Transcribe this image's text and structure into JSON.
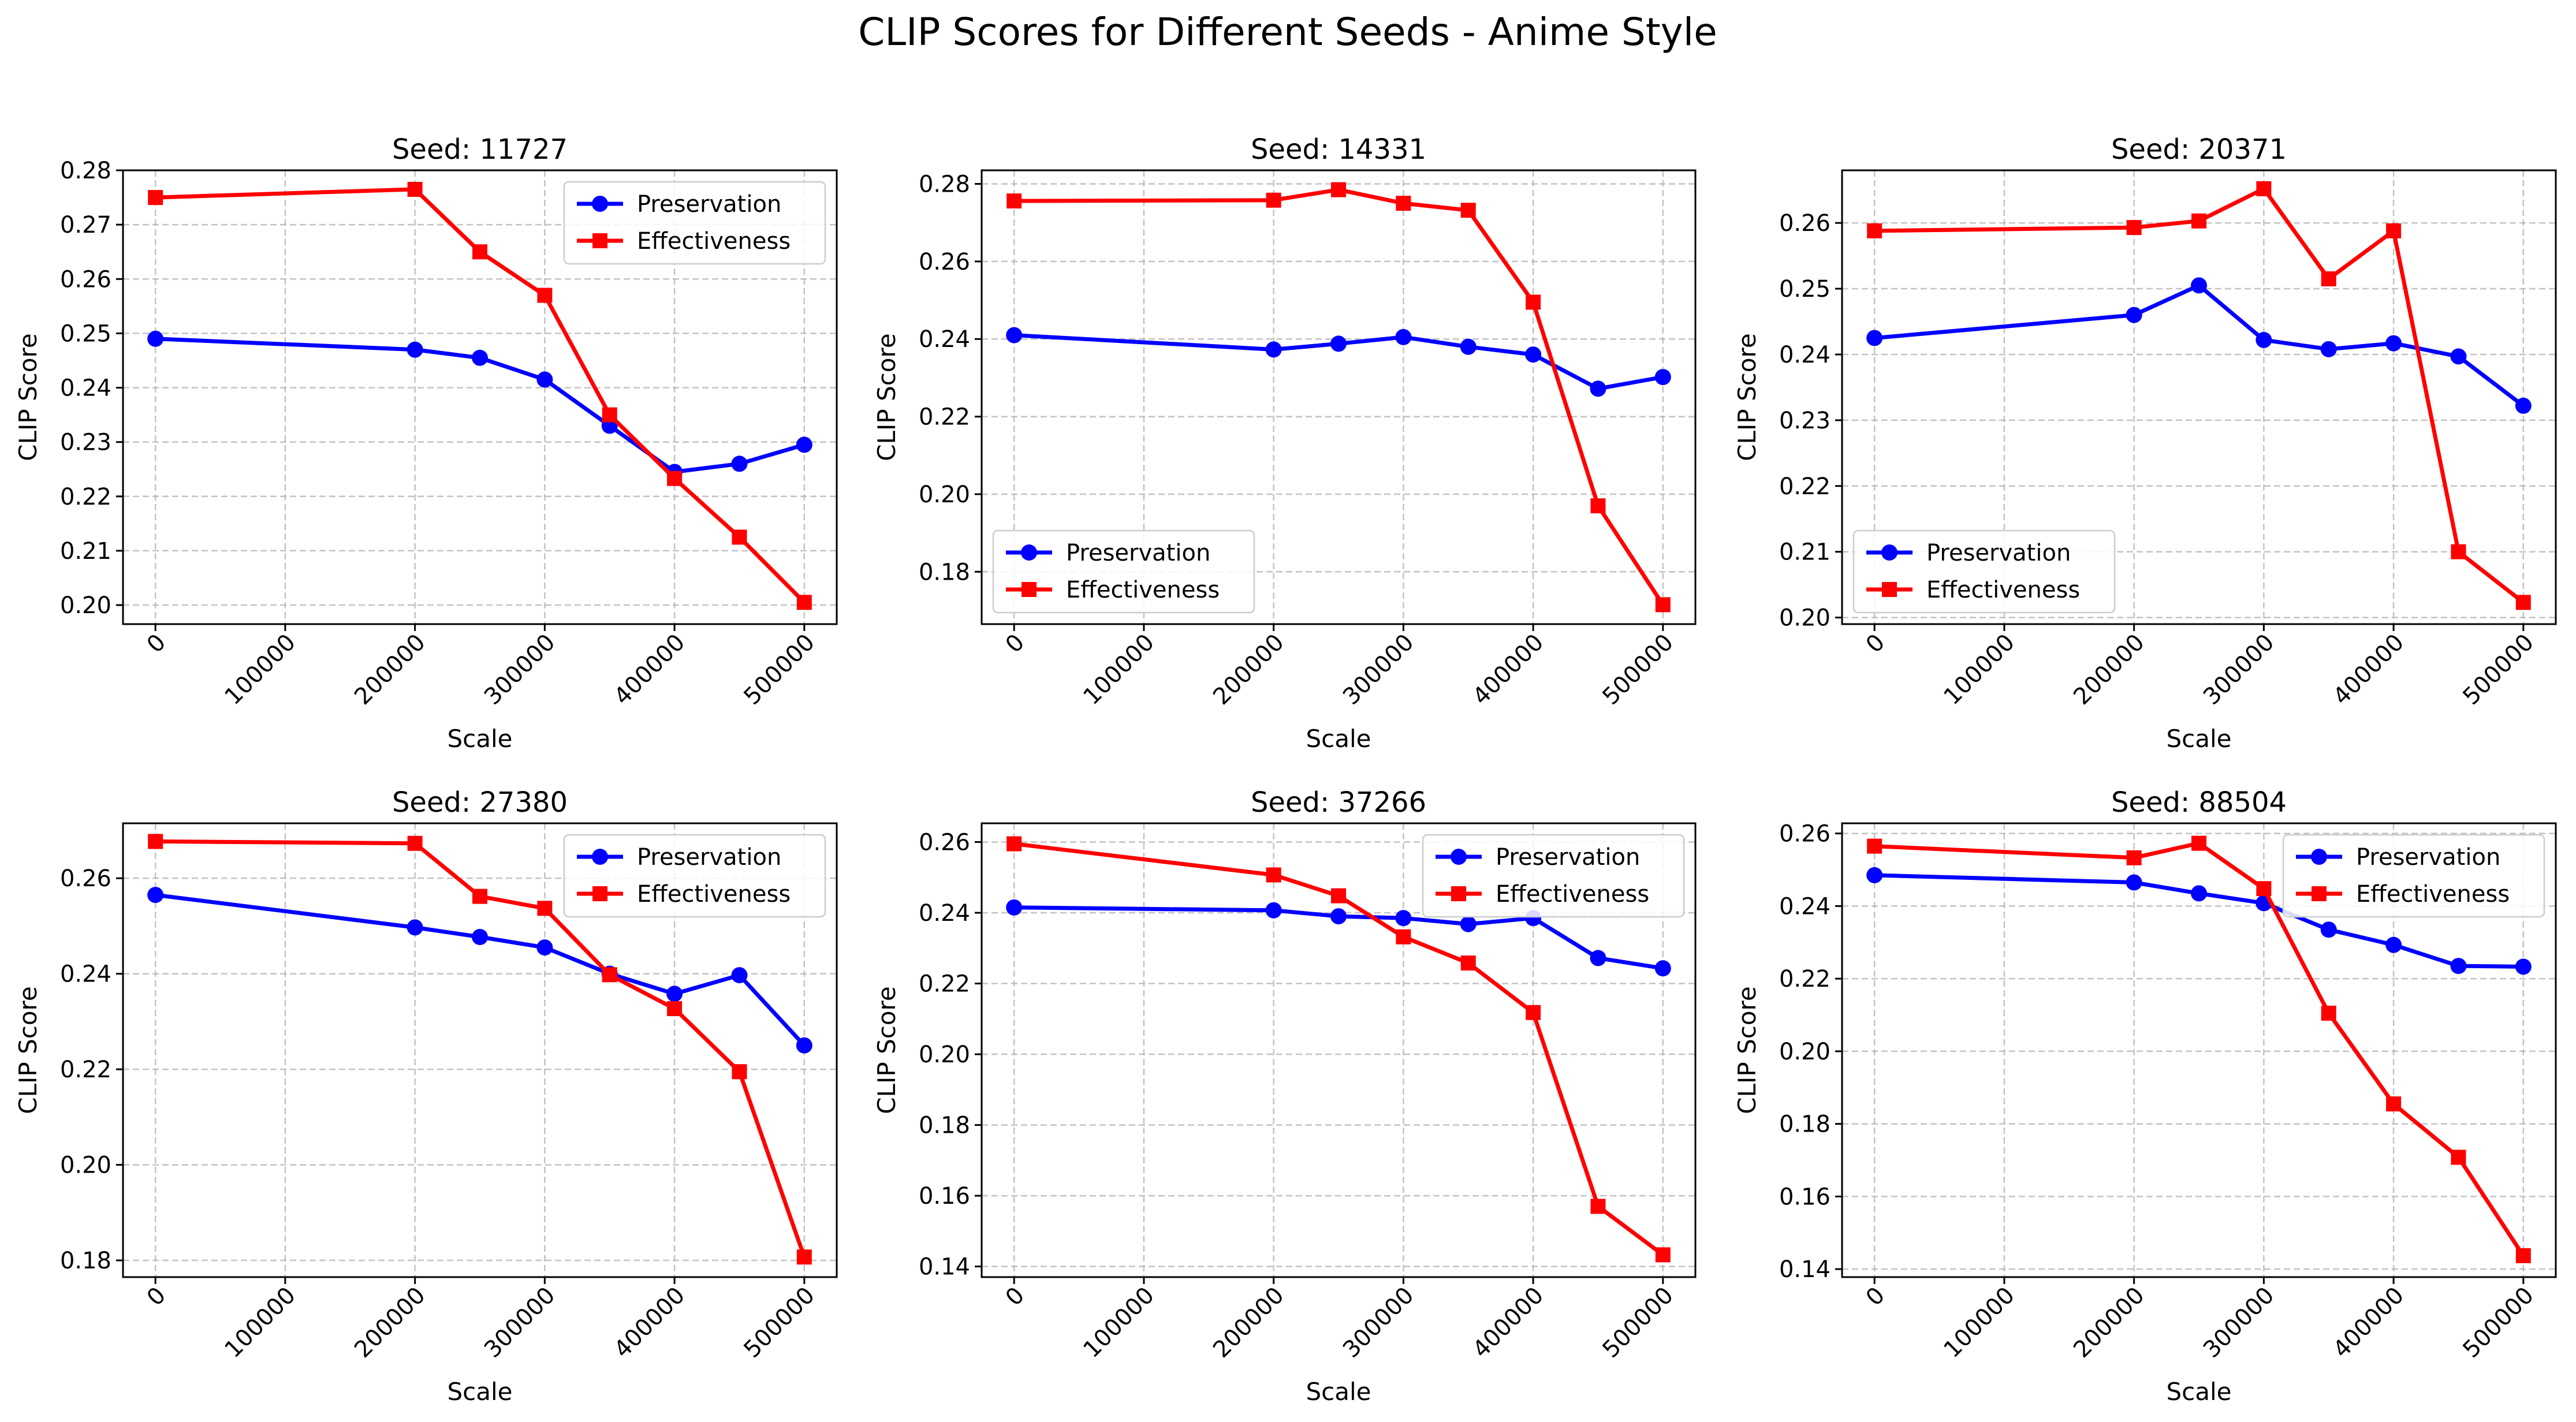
{
  "figure_title": "CLIP Scores for Different Seeds - Anime Style",
  "chart_data": [
    {
      "type": "line",
      "title": "Seed: 11727",
      "xlabel": "Scale",
      "ylabel": "CLIP Score",
      "x": [
        0,
        200000,
        250000,
        300000,
        350000,
        400000,
        450000,
        500000
      ],
      "x_ticks": [
        0,
        100000,
        200000,
        300000,
        400000,
        500000
      ],
      "xlim": [
        -25000,
        525000
      ],
      "ylim": [
        0.1965,
        0.28
      ],
      "y_ticks": [
        0.2,
        0.21,
        0.22,
        0.23,
        0.24,
        0.25,
        0.26,
        0.27,
        0.28
      ],
      "y_tick_decimals": 2,
      "legend": "upper right",
      "grid": true,
      "series": [
        {
          "name": "Preservation",
          "color": "#0000ff",
          "marker": "circle",
          "values": [
            0.249,
            0.247,
            0.2455,
            0.2415,
            0.233,
            0.2245,
            0.226,
            0.2295
          ]
        },
        {
          "name": "Effectiveness",
          "color": "#ff0000",
          "marker": "square",
          "values": [
            0.275,
            0.2765,
            0.265,
            0.257,
            0.235,
            0.2233,
            0.2125,
            0.2005
          ]
        }
      ]
    },
    {
      "type": "line",
      "title": "Seed: 14331",
      "xlabel": "Scale",
      "ylabel": "CLIP Score",
      "x": [
        0,
        200000,
        250000,
        300000,
        350000,
        400000,
        450000,
        500000
      ],
      "x_ticks": [
        0,
        100000,
        200000,
        300000,
        400000,
        500000
      ],
      "xlim": [
        -25000,
        525000
      ],
      "ylim": [
        0.1665,
        0.2835
      ],
      "y_ticks": [
        0.18,
        0.2,
        0.22,
        0.24,
        0.26,
        0.28
      ],
      "y_tick_decimals": 2,
      "legend": "lower left",
      "grid": true,
      "series": [
        {
          "name": "Preservation",
          "color": "#0000ff",
          "marker": "circle",
          "values": [
            0.241,
            0.2373,
            0.2388,
            0.2405,
            0.238,
            0.236,
            0.2272,
            0.2302
          ]
        },
        {
          "name": "Effectiveness",
          "color": "#ff0000",
          "marker": "square",
          "values": [
            0.2756,
            0.2758,
            0.2785,
            0.275,
            0.2732,
            0.2495,
            0.197,
            0.1715
          ]
        }
      ]
    },
    {
      "type": "line",
      "title": "Seed: 20371",
      "xlabel": "Scale",
      "ylabel": "CLIP Score",
      "x": [
        0,
        200000,
        250000,
        300000,
        350000,
        400000,
        450000,
        500000
      ],
      "x_ticks": [
        0,
        100000,
        200000,
        300000,
        400000,
        500000
      ],
      "xlim": [
        -25000,
        525000
      ],
      "ylim": [
        0.199,
        0.268
      ],
      "y_ticks": [
        0.2,
        0.21,
        0.22,
        0.23,
        0.24,
        0.25,
        0.26
      ],
      "y_tick_decimals": 2,
      "legend": "lower left",
      "grid": true,
      "series": [
        {
          "name": "Preservation",
          "color": "#0000ff",
          "marker": "circle",
          "values": [
            0.2425,
            0.246,
            0.2505,
            0.2422,
            0.2408,
            0.2417,
            0.2397,
            0.2322
          ]
        },
        {
          "name": "Effectiveness",
          "color": "#ff0000",
          "marker": "square",
          "values": [
            0.2588,
            0.2593,
            0.2603,
            0.2652,
            0.2515,
            0.2588,
            0.21,
            0.2023
          ]
        }
      ]
    },
    {
      "type": "line",
      "title": "Seed: 27380",
      "xlabel": "Scale",
      "ylabel": "CLIP Score",
      "x": [
        0,
        200000,
        250000,
        300000,
        350000,
        400000,
        450000,
        500000
      ],
      "x_ticks": [
        0,
        100000,
        200000,
        300000,
        400000,
        500000
      ],
      "xlim": [
        -25000,
        525000
      ],
      "ylim": [
        0.1765,
        0.2715
      ],
      "y_ticks": [
        0.18,
        0.2,
        0.22,
        0.24,
        0.26
      ],
      "y_tick_decimals": 2,
      "legend": "upper right",
      "grid": true,
      "series": [
        {
          "name": "Preservation",
          "color": "#0000ff",
          "marker": "circle",
          "values": [
            0.2565,
            0.2497,
            0.2477,
            0.2455,
            0.24,
            0.2358,
            0.2397,
            0.225
          ]
        },
        {
          "name": "Effectiveness",
          "color": "#ff0000",
          "marker": "square",
          "values": [
            0.2677,
            0.2673,
            0.2562,
            0.2537,
            0.2398,
            0.2327,
            0.2195,
            0.1807
          ]
        }
      ]
    },
    {
      "type": "line",
      "title": "Seed: 37266",
      "xlabel": "Scale",
      "ylabel": "CLIP Score",
      "x": [
        0,
        200000,
        250000,
        300000,
        350000,
        400000,
        450000,
        500000
      ],
      "x_ticks": [
        0,
        100000,
        200000,
        300000,
        400000,
        500000
      ],
      "xlim": [
        -25000,
        525000
      ],
      "ylim": [
        0.137,
        0.2653
      ],
      "y_ticks": [
        0.14,
        0.16,
        0.18,
        0.2,
        0.22,
        0.24,
        0.26
      ],
      "y_tick_decimals": 2,
      "legend": "upper right",
      "grid": true,
      "series": [
        {
          "name": "Preservation",
          "color": "#0000ff",
          "marker": "circle",
          "values": [
            0.2415,
            0.2407,
            0.239,
            0.2385,
            0.2368,
            0.2385,
            0.2272,
            0.2243
          ]
        },
        {
          "name": "Effectiveness",
          "color": "#ff0000",
          "marker": "square",
          "values": [
            0.2595,
            0.2507,
            0.2448,
            0.2332,
            0.2258,
            0.2118,
            0.157,
            0.1433
          ]
        }
      ]
    },
    {
      "type": "line",
      "title": "Seed: 88504",
      "xlabel": "Scale",
      "ylabel": "CLIP Score",
      "x": [
        0,
        200000,
        250000,
        300000,
        350000,
        400000,
        450000,
        500000
      ],
      "x_ticks": [
        0,
        100000,
        200000,
        300000,
        400000,
        500000
      ],
      "xlim": [
        -25000,
        525000
      ],
      "ylim": [
        0.1378,
        0.2628
      ],
      "y_ticks": [
        0.14,
        0.16,
        0.18,
        0.2,
        0.22,
        0.24,
        0.26
      ],
      "y_tick_decimals": 2,
      "legend": "upper right",
      "grid": true,
      "series": [
        {
          "name": "Preservation",
          "color": "#0000ff",
          "marker": "circle",
          "values": [
            0.2485,
            0.2465,
            0.2435,
            0.2408,
            0.2335,
            0.2293,
            0.2235,
            0.2233
          ]
        },
        {
          "name": "Effectiveness",
          "color": "#ff0000",
          "marker": "square",
          "values": [
            0.2565,
            0.2533,
            0.2573,
            0.2448,
            0.2105,
            0.1855,
            0.1708,
            0.1437
          ]
        }
      ]
    }
  ]
}
